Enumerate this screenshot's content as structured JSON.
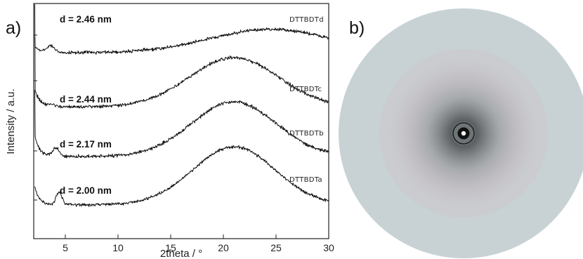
{
  "panels": {
    "a": "a)",
    "b": "b)"
  },
  "chart_data": {
    "type": "line",
    "xlabel": "2theta / °",
    "ylabel": "Intensity / a.u.",
    "xlim": [
      2,
      30
    ],
    "x_ticks": [
      5,
      10,
      15,
      20,
      25,
      30
    ],
    "y_ticks_labeled": false,
    "grid": false,
    "series": [
      {
        "name": "DTTBDTd",
        "d_label": "d = 2.46 nm",
        "peak_2theta": 3.6,
        "broad_peak_2theta": 24.0,
        "profile": "broad-rising"
      },
      {
        "name": "DTTBDTc",
        "d_label": "d = 2.44 nm",
        "peak_2theta": 3.6,
        "broad_peak_2theta": 21.0,
        "profile": "amorphous-halo"
      },
      {
        "name": "DTTBDTb",
        "d_label": "d = 2.17 nm",
        "peak_2theta": 4.1,
        "broad_peak_2theta": 21.0,
        "profile": "amorphous-halo"
      },
      {
        "name": "DTTBDTa",
        "d_label": "d = 2.00 nm",
        "peak_2theta": 4.4,
        "broad_peak_2theta": 21.0,
        "profile": "amorphous-halo"
      }
    ]
  },
  "diffraction_pattern": {
    "background": "#ffffff",
    "disk_color": "#c8d2d4",
    "halo_color": "#6d7174",
    "ring_tint": "#bfa7ad",
    "beamstop_color": "#111111"
  }
}
